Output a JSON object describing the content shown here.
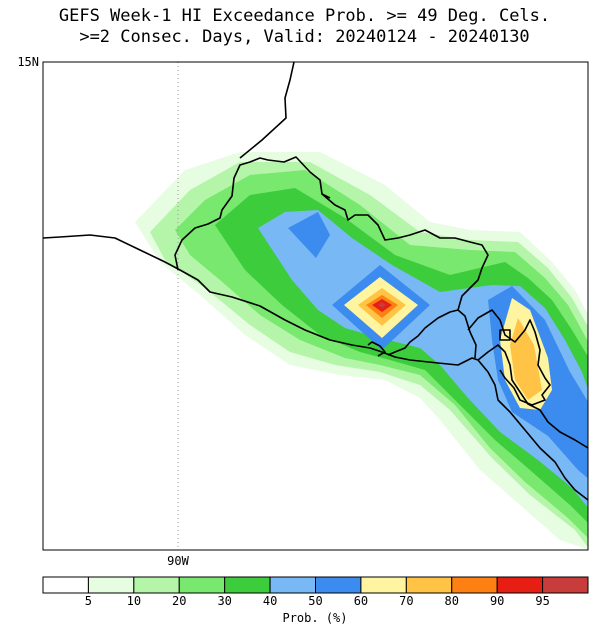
{
  "title": {
    "line1": "GEFS Week-1 HI Exceedance Prob. >= 49 Deg. Cels.",
    "line2": ">=2 Consec. Days, Valid: 20240124 - 20240130"
  },
  "map": {
    "lat_label": "15N",
    "lon_label": "90W"
  },
  "legend": {
    "title": "Prob. (%)",
    "ticks": [
      "5",
      "10",
      "20",
      "30",
      "40",
      "50",
      "60",
      "70",
      "80",
      "90",
      "95"
    ],
    "colors": [
      "#ffffff",
      "#e6fde2",
      "#b5f5a9",
      "#78e86e",
      "#3ccc3c",
      "#78b9f5",
      "#3c8cf0",
      "#fff5a0",
      "#ffc445",
      "#ff8012",
      "#e61e14",
      "#c83c3c"
    ]
  }
}
